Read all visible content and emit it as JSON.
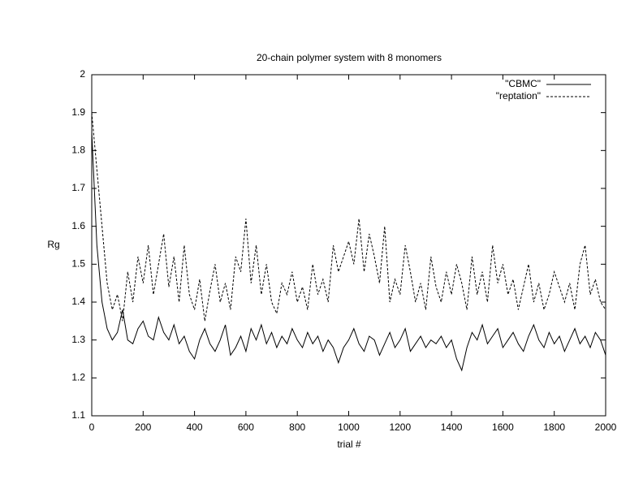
{
  "chart_data": {
    "type": "line",
    "title": "20-chain polymer system with 8 monomers",
    "x_label": "trial #",
    "y_label": "Rg",
    "x": [
      0,
      20,
      40,
      60,
      80,
      100,
      120,
      140,
      160,
      180,
      200,
      220,
      240,
      260,
      280,
      300,
      320,
      340,
      360,
      380,
      400,
      420,
      440,
      460,
      480,
      500,
      520,
      540,
      560,
      580,
      600,
      620,
      640,
      660,
      680,
      700,
      720,
      740,
      760,
      780,
      800,
      820,
      840,
      860,
      880,
      900,
      920,
      940,
      960,
      980,
      1000,
      1020,
      1040,
      1060,
      1080,
      1100,
      1120,
      1140,
      1160,
      1180,
      1200,
      1220,
      1240,
      1260,
      1280,
      1300,
      1320,
      1340,
      1360,
      1380,
      1400,
      1420,
      1440,
      1460,
      1480,
      1500,
      1520,
      1540,
      1560,
      1580,
      1600,
      1620,
      1640,
      1660,
      1680,
      1700,
      1720,
      1740,
      1760,
      1780,
      1800,
      1820,
      1840,
      1860,
      1880,
      1900,
      1920,
      1940,
      1960,
      1980,
      2000
    ],
    "series": [
      {
        "name": "\"CBMC\"",
        "color": "#000000",
        "dash": false,
        "values": [
          1.85,
          1.55,
          1.4,
          1.33,
          1.3,
          1.32,
          1.38,
          1.3,
          1.29,
          1.33,
          1.35,
          1.31,
          1.3,
          1.36,
          1.32,
          1.3,
          1.34,
          1.29,
          1.31,
          1.27,
          1.25,
          1.3,
          1.33,
          1.29,
          1.27,
          1.3,
          1.34,
          1.26,
          1.28,
          1.31,
          1.27,
          1.33,
          1.3,
          1.34,
          1.29,
          1.32,
          1.28,
          1.31,
          1.29,
          1.33,
          1.3,
          1.28,
          1.32,
          1.29,
          1.31,
          1.27,
          1.3,
          1.28,
          1.24,
          1.28,
          1.3,
          1.33,
          1.29,
          1.27,
          1.31,
          1.3,
          1.26,
          1.29,
          1.32,
          1.28,
          1.3,
          1.33,
          1.27,
          1.29,
          1.31,
          1.28,
          1.3,
          1.29,
          1.31,
          1.28,
          1.3,
          1.25,
          1.22,
          1.28,
          1.32,
          1.3,
          1.34,
          1.29,
          1.31,
          1.33,
          1.28,
          1.3,
          1.32,
          1.29,
          1.27,
          1.31,
          1.34,
          1.3,
          1.28,
          1.32,
          1.29,
          1.31,
          1.27,
          1.3,
          1.33,
          1.29,
          1.31,
          1.28,
          1.32,
          1.3,
          1.26
        ]
      },
      {
        "name": "\"reptation\"",
        "color": "#000000",
        "dash": true,
        "values": [
          1.9,
          1.75,
          1.6,
          1.45,
          1.38,
          1.42,
          1.35,
          1.48,
          1.4,
          1.52,
          1.45,
          1.55,
          1.42,
          1.5,
          1.58,
          1.44,
          1.52,
          1.4,
          1.55,
          1.42,
          1.38,
          1.46,
          1.35,
          1.43,
          1.5,
          1.4,
          1.45,
          1.38,
          1.52,
          1.48,
          1.62,
          1.45,
          1.55,
          1.42,
          1.5,
          1.4,
          1.37,
          1.45,
          1.42,
          1.48,
          1.4,
          1.44,
          1.38,
          1.5,
          1.42,
          1.46,
          1.4,
          1.55,
          1.48,
          1.52,
          1.56,
          1.5,
          1.62,
          1.48,
          1.58,
          1.52,
          1.45,
          1.6,
          1.4,
          1.46,
          1.42,
          1.55,
          1.48,
          1.4,
          1.45,
          1.38,
          1.52,
          1.44,
          1.4,
          1.48,
          1.42,
          1.5,
          1.45,
          1.38,
          1.52,
          1.42,
          1.48,
          1.4,
          1.55,
          1.45,
          1.5,
          1.42,
          1.46,
          1.38,
          1.44,
          1.5,
          1.4,
          1.45,
          1.38,
          1.42,
          1.48,
          1.44,
          1.4,
          1.45,
          1.38,
          1.5,
          1.55,
          1.42,
          1.46,
          1.4,
          1.38
        ]
      }
    ],
    "xlim": [
      0,
      2000
    ],
    "xticks": [
      0,
      200,
      400,
      600,
      800,
      1000,
      1200,
      1400,
      1600,
      1800,
      2000
    ],
    "ylim": [
      1.1,
      2
    ],
    "yticks": [
      1.1,
      1.2,
      1.3,
      1.4,
      1.5,
      1.6,
      1.7,
      1.8,
      1.9,
      2
    ],
    "legend": "top-right",
    "grid": false
  }
}
